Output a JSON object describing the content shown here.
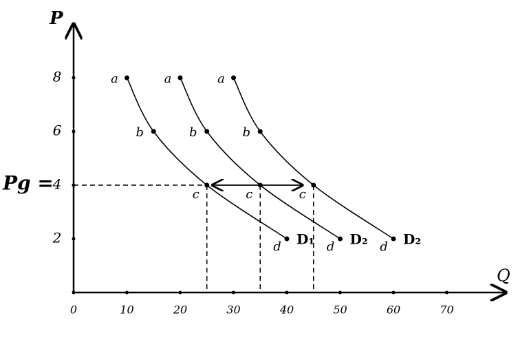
{
  "chart_data": {
    "type": "line",
    "x_label": "Q",
    "y_label": "P",
    "annotation": "Pg =",
    "xlim": [
      0,
      80
    ],
    "ylim": [
      0,
      10
    ],
    "xticks": [
      0,
      10,
      20,
      30,
      40,
      50,
      60,
      70
    ],
    "yticks": [
      2,
      4,
      6,
      8
    ],
    "series": [
      {
        "name": "D₁",
        "color": "#000000",
        "x": [
          10,
          15,
          25,
          40
        ],
        "values": [
          8,
          6,
          4,
          2
        ],
        "point_labels": [
          "a",
          "b",
          "c",
          "d"
        ]
      },
      {
        "name": "D₂",
        "color": "#000000",
        "x": [
          20,
          25,
          35,
          50
        ],
        "values": [
          8,
          6,
          4,
          2
        ],
        "point_labels": [
          "a",
          "b",
          "c",
          "d"
        ]
      },
      {
        "name": "D₂",
        "color": "#000000",
        "x": [
          30,
          35,
          45,
          60
        ],
        "values": [
          8,
          6,
          4,
          2
        ],
        "point_labels": [
          "a",
          "b",
          "c",
          "d"
        ]
      }
    ]
  }
}
